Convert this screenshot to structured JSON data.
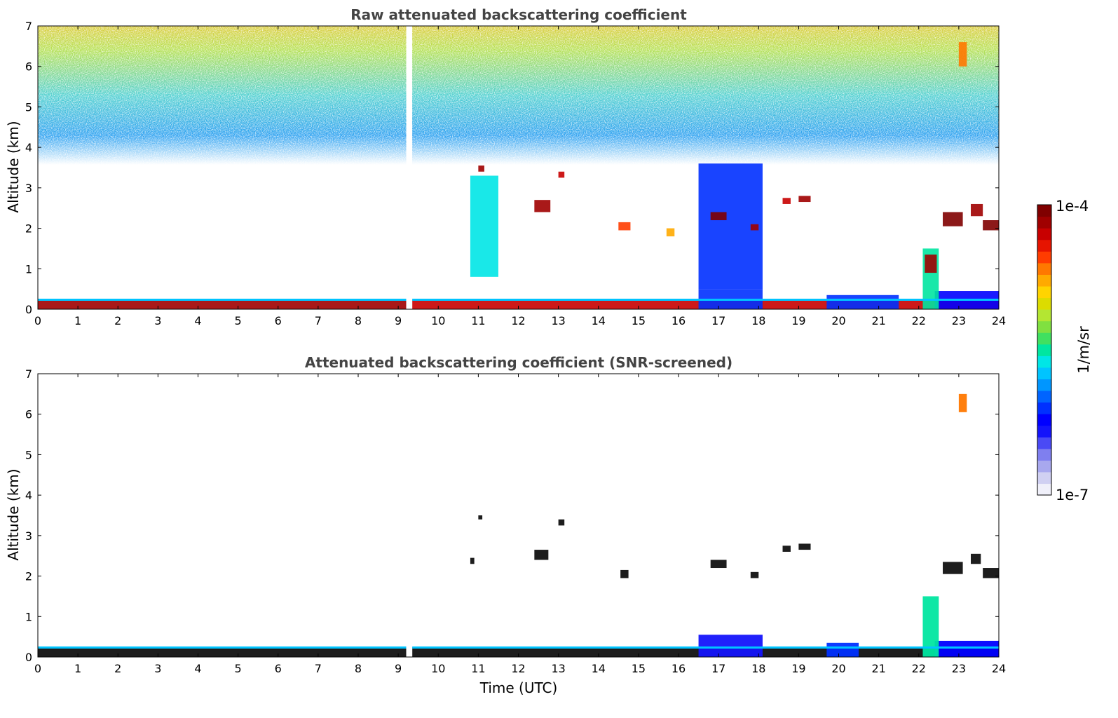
{
  "chart_data": [
    {
      "type": "heatmap",
      "title": "Raw attenuated backscattering coefficient",
      "xlabel": "",
      "ylabel": "Altitude (km)",
      "xlim": [
        0,
        24
      ],
      "ylim": [
        0,
        7
      ],
      "xticks": [
        "0",
        "1",
        "2",
        "3",
        "4",
        "5",
        "6",
        "7",
        "8",
        "9",
        "10",
        "11",
        "12",
        "13",
        "14",
        "15",
        "16",
        "17",
        "18",
        "19",
        "20",
        "21",
        "22",
        "23",
        "24"
      ],
      "yticks": [
        "0",
        "1",
        "2",
        "3",
        "4",
        "5",
        "6",
        "7"
      ],
      "features": [
        {
          "x": [
            0,
            9.2
          ],
          "y": [
            0,
            0.25
          ],
          "level": 0.95
        },
        {
          "x": [
            9.35,
            24
          ],
          "y": [
            0,
            0.25
          ],
          "level": 0.9
        },
        {
          "x": [
            16.5,
            18.1
          ],
          "y": [
            0,
            0.5
          ],
          "level": 0.3
        },
        {
          "x": [
            16.5,
            18.1
          ],
          "y": [
            0.5,
            3.6
          ],
          "level": 0.28
        },
        {
          "x": [
            19.7,
            21.5
          ],
          "y": [
            0,
            0.35
          ],
          "level": 0.3
        },
        {
          "x": [
            22.4,
            24
          ],
          "y": [
            0,
            0.45
          ],
          "level": 0.25
        },
        {
          "x": [
            10.8,
            11.5
          ],
          "y": [
            0.8,
            3.3
          ],
          "level": 0.45
        },
        {
          "x": [
            11.0,
            11.15
          ],
          "y": [
            3.4,
            3.55
          ],
          "level": 0.95
        },
        {
          "x": [
            12.4,
            12.8
          ],
          "y": [
            2.4,
            2.7
          ],
          "level": 0.95
        },
        {
          "x": [
            13.0,
            13.15
          ],
          "y": [
            3.25,
            3.4
          ],
          "level": 0.9
        },
        {
          "x": [
            14.5,
            14.8
          ],
          "y": [
            1.95,
            2.15
          ],
          "level": 0.85
        },
        {
          "x": [
            15.7,
            15.9
          ],
          "y": [
            1.8,
            2.0
          ],
          "level": 0.75
        },
        {
          "x": [
            16.8,
            17.2
          ],
          "y": [
            2.2,
            2.4
          ],
          "level": 0.98
        },
        {
          "x": [
            17.8,
            18.0
          ],
          "y": [
            1.95,
            2.1
          ],
          "level": 0.95
        },
        {
          "x": [
            18.6,
            18.8
          ],
          "y": [
            2.6,
            2.75
          ],
          "level": 0.9
        },
        {
          "x": [
            19.0,
            19.3
          ],
          "y": [
            2.65,
            2.8
          ],
          "level": 0.95
        },
        {
          "x": [
            22.6,
            23.1
          ],
          "y": [
            2.05,
            2.4
          ],
          "level": 0.98
        },
        {
          "x": [
            23.3,
            23.6
          ],
          "y": [
            2.3,
            2.6
          ],
          "level": 0.95
        },
        {
          "x": [
            23.6,
            24
          ],
          "y": [
            1.95,
            2.2
          ],
          "level": 0.98
        },
        {
          "x": [
            23.0,
            23.2
          ],
          "y": [
            6.0,
            6.6
          ],
          "level": 0.8
        },
        {
          "x": [
            22.1,
            22.5
          ],
          "y": [
            0,
            1.5
          ],
          "level": 0.5
        },
        {
          "x": [
            22.15,
            22.45
          ],
          "y": [
            0.9,
            1.35
          ],
          "level": 0.95
        }
      ],
      "data_gap": [
        9.2,
        9.35
      ]
    },
    {
      "type": "heatmap",
      "title": "Attenuated backscattering coefficient (SNR-screened)",
      "xlabel": "Time (UTC)",
      "ylabel": "Altitude (km)",
      "xlim": [
        0,
        24
      ],
      "ylim": [
        0,
        7
      ],
      "xticks": [
        "0",
        "1",
        "2",
        "3",
        "4",
        "5",
        "6",
        "7",
        "8",
        "9",
        "10",
        "11",
        "12",
        "13",
        "14",
        "15",
        "16",
        "17",
        "18",
        "19",
        "20",
        "21",
        "22",
        "23",
        "24"
      ],
      "yticks": [
        "0",
        "1",
        "2",
        "3",
        "4",
        "5",
        "6",
        "7"
      ],
      "features": [
        {
          "x": [
            0,
            9.2
          ],
          "y": [
            0,
            0.25
          ],
          "level": 1.0
        },
        {
          "x": [
            9.35,
            24
          ],
          "y": [
            0,
            0.25
          ],
          "level": 1.0
        },
        {
          "x": [
            16.5,
            18.1
          ],
          "y": [
            0,
            0.55
          ],
          "level": 0.2
        },
        {
          "x": [
            19.7,
            20.5
          ],
          "y": [
            0,
            0.35
          ],
          "level": 0.3
        },
        {
          "x": [
            22.4,
            24
          ],
          "y": [
            0,
            0.4
          ],
          "level": 0.25
        },
        {
          "x": [
            11.0,
            11.1
          ],
          "y": [
            3.4,
            3.5
          ],
          "level": 1.0
        },
        {
          "x": [
            10.8,
            10.9
          ],
          "y": [
            2.3,
            2.45
          ],
          "level": 1.0
        },
        {
          "x": [
            12.4,
            12.75
          ],
          "y": [
            2.4,
            2.65
          ],
          "level": 1.0
        },
        {
          "x": [
            13.0,
            13.15
          ],
          "y": [
            3.25,
            3.4
          ],
          "level": 1.0
        },
        {
          "x": [
            14.55,
            14.75
          ],
          "y": [
            1.95,
            2.15
          ],
          "level": 1.0
        },
        {
          "x": [
            16.8,
            17.2
          ],
          "y": [
            2.2,
            2.4
          ],
          "level": 1.0
        },
        {
          "x": [
            17.8,
            18.0
          ],
          "y": [
            1.95,
            2.1
          ],
          "level": 1.0
        },
        {
          "x": [
            18.6,
            18.8
          ],
          "y": [
            2.6,
            2.75
          ],
          "level": 1.0
        },
        {
          "x": [
            19.0,
            19.3
          ],
          "y": [
            2.65,
            2.8
          ],
          "level": 1.0
        },
        {
          "x": [
            22.6,
            23.1
          ],
          "y": [
            2.05,
            2.35
          ],
          "level": 1.0
        },
        {
          "x": [
            23.3,
            23.55
          ],
          "y": [
            2.3,
            2.55
          ],
          "level": 1.0
        },
        {
          "x": [
            23.6,
            24
          ],
          "y": [
            1.95,
            2.2
          ],
          "level": 1.0
        },
        {
          "x": [
            23.0,
            23.2
          ],
          "y": [
            6.05,
            6.5
          ],
          "level": 0.78
        },
        {
          "x": [
            22.1,
            22.5
          ],
          "y": [
            0,
            1.5
          ],
          "level": 0.5
        }
      ],
      "data_gap": [
        9.2,
        9.35
      ]
    }
  ],
  "colorbar": {
    "label": "1/m/sr",
    "max_label": "1e-4",
    "min_label": "1e-7",
    "colors": [
      "#f0f0fa",
      "#d0d0f2",
      "#a8a8ee",
      "#7f7fef",
      "#4a4af5",
      "#1414fb",
      "#0000ff",
      "#0030ff",
      "#0064ff",
      "#0096ff",
      "#00c4ff",
      "#00e6e6",
      "#00e6a0",
      "#40e060",
      "#80e040",
      "#b4e632",
      "#dcdc00",
      "#ffd400",
      "#ffaa00",
      "#ff7800",
      "#ff3c00",
      "#e61400",
      "#c80000",
      "#a00000",
      "#800000"
    ]
  }
}
